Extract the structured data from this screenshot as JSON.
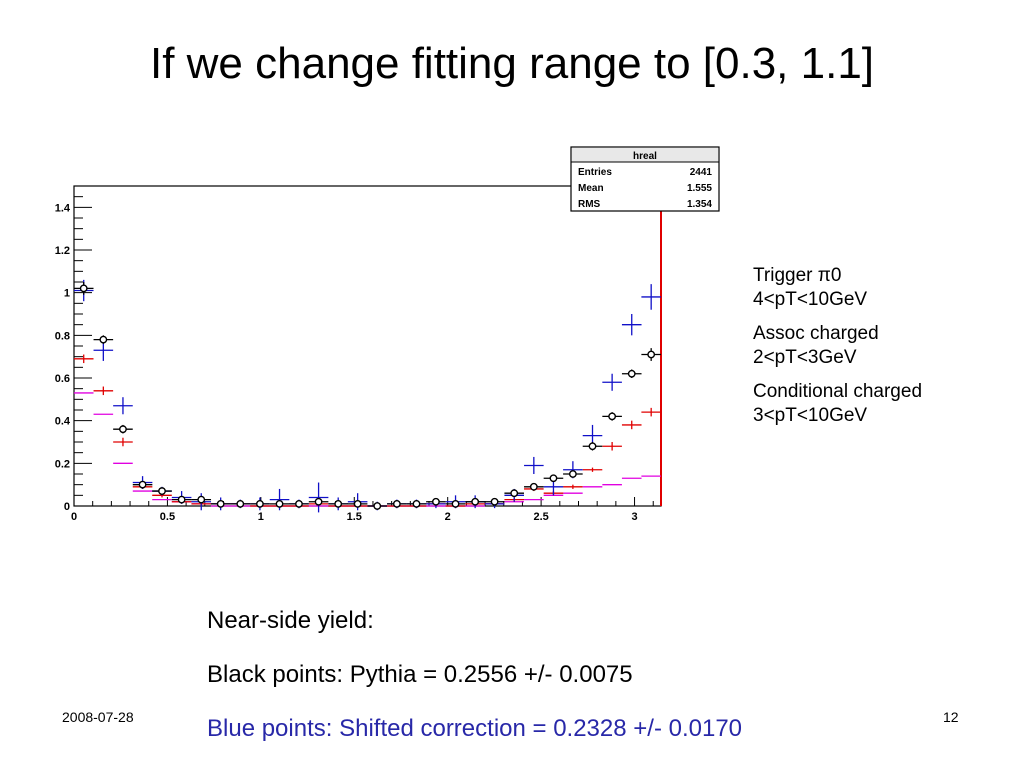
{
  "slide": {
    "title": "If we change fitting range to [0.3, 1.1]",
    "date": "2008-07-28",
    "page_number": "12"
  },
  "side_note": {
    "trigger_label": "Trigger π0",
    "trigger_range": "4<pT<10GeV",
    "assoc_label": "Assoc charged",
    "assoc_range": "2<pT<3GeV",
    "conditional_label": "Conditional charged",
    "conditional_range": "3<pT<10GeV"
  },
  "yield": {
    "heading": "Near-side yield:",
    "black_line": "Black points: Pythia = 0.2556 +/- 0.0075",
    "blue_line": "Blue points:  Shifted correction = 0.2328 +/- 0.0170"
  },
  "stats_box": {
    "title": "hreal",
    "rows": [
      {
        "label": "Entries",
        "value": "2441"
      },
      {
        "label": "Mean",
        "value": "1.555"
      },
      {
        "label": "RMS",
        "value": "1.354"
      }
    ]
  },
  "colors": {
    "blue": "#1010c8",
    "black": "#000000",
    "red": "#e00000",
    "magenta": "#e000e0"
  },
  "chart_data": {
    "type": "scatter",
    "title": "",
    "xlabel": "",
    "ylabel": "",
    "xlim": [
      0,
      3.1416
    ],
    "ylim": [
      0,
      1.5
    ],
    "x_ticks": [
      0,
      0.5,
      1,
      1.5,
      2,
      2.5,
      3
    ],
    "x_tick_labels": [
      "0",
      "0.5",
      "1",
      "1.5",
      "2",
      "2.5",
      "3"
    ],
    "y_ticks": [
      0,
      0.2,
      0.4,
      0.6,
      0.8,
      1,
      1.2,
      1.4
    ],
    "y_tick_labels": [
      "0",
      "0.2",
      "0.4",
      "0.6",
      "0.8",
      "1",
      "1.2",
      "1.4"
    ],
    "grid": false,
    "bin_half_width": 0.0524,
    "series": [
      {
        "color": "#1010c8",
        "marker": "cross",
        "x": [
          0.052,
          0.157,
          0.262,
          0.367,
          0.471,
          0.576,
          0.681,
          0.785,
          0.89,
          0.995,
          1.1,
          1.204,
          1.309,
          1.414,
          1.518,
          1.623,
          1.728,
          1.833,
          1.937,
          2.042,
          2.147,
          2.251,
          2.356,
          2.461,
          2.566,
          2.67,
          2.775,
          2.88,
          2.985,
          3.089
        ],
        "y": [
          1.01,
          0.73,
          0.47,
          0.11,
          0.07,
          0.04,
          0.02,
          0.01,
          0.01,
          0.01,
          0.03,
          0.01,
          0.04,
          0.01,
          0.02,
          0.0,
          0.01,
          0.01,
          0.01,
          0.02,
          0.02,
          0.01,
          0.05,
          0.19,
          0.09,
          0.17,
          0.33,
          0.58,
          0.85,
          0.98
        ],
        "err": [
          0.05,
          0.05,
          0.04,
          0.03,
          0.02,
          0.03,
          0.04,
          0.03,
          0.02,
          0.03,
          0.05,
          0.02,
          0.07,
          0.03,
          0.04,
          0.02,
          0.02,
          0.02,
          0.02,
          0.03,
          0.03,
          0.02,
          0.03,
          0.04,
          0.04,
          0.04,
          0.05,
          0.04,
          0.05,
          0.06
        ]
      },
      {
        "color": "#000000",
        "marker": "open-circle",
        "x": [
          0.052,
          0.157,
          0.262,
          0.367,
          0.471,
          0.576,
          0.681,
          0.785,
          0.89,
          0.995,
          1.1,
          1.204,
          1.309,
          1.414,
          1.518,
          1.623,
          1.728,
          1.833,
          1.937,
          2.042,
          2.147,
          2.251,
          2.356,
          2.461,
          2.566,
          2.67,
          2.775,
          2.88,
          2.985,
          3.089
        ],
        "y": [
          1.02,
          0.78,
          0.36,
          0.1,
          0.07,
          0.03,
          0.03,
          0.01,
          0.01,
          0.01,
          0.01,
          0.01,
          0.02,
          0.01,
          0.01,
          0.0,
          0.01,
          0.01,
          0.02,
          0.01,
          0.02,
          0.02,
          0.06,
          0.09,
          0.13,
          0.15,
          0.28,
          0.42,
          0.62,
          0.71
        ],
        "err": [
          0.03,
          0.02,
          0.02,
          0.01,
          0.01,
          0.01,
          0.01,
          0.01,
          0.01,
          0.01,
          0.01,
          0.01,
          0.01,
          0.01,
          0.01,
          0.01,
          0.01,
          0.01,
          0.01,
          0.01,
          0.01,
          0.01,
          0.01,
          0.01,
          0.01,
          0.01,
          0.02,
          0.02,
          0.02,
          0.03
        ]
      },
      {
        "color": "#e00000",
        "marker": "cross",
        "x": [
          0.052,
          0.157,
          0.262,
          0.367,
          0.471,
          0.576,
          0.681,
          0.785,
          0.89,
          0.995,
          1.1,
          1.204,
          1.309,
          1.414,
          1.518,
          1.623,
          1.728,
          1.833,
          1.937,
          2.042,
          2.147,
          2.251,
          2.356,
          2.461,
          2.566,
          2.67,
          2.775,
          2.88,
          2.985,
          3.089
        ],
        "y": [
          0.69,
          0.54,
          0.3,
          0.09,
          0.05,
          0.02,
          0.01,
          0.01,
          0.01,
          0.0,
          0.0,
          0.0,
          0.01,
          0.0,
          0.0,
          0.0,
          0.0,
          0.0,
          0.01,
          0.0,
          0.01,
          0.01,
          0.03,
          0.08,
          0.06,
          0.09,
          0.17,
          0.28,
          0.38,
          0.44
        ],
        "err": [
          0.02,
          0.02,
          0.02,
          0.01,
          0.01,
          0.01,
          0.01,
          0.01,
          0.01,
          0.01,
          0.01,
          0.01,
          0.01,
          0.01,
          0.01,
          0.01,
          0.01,
          0.01,
          0.01,
          0.01,
          0.01,
          0.01,
          0.01,
          0.01,
          0.01,
          0.01,
          0.01,
          0.02,
          0.02,
          0.02
        ]
      },
      {
        "color": "#e000e0",
        "marker": "dash",
        "x": [
          0.052,
          0.157,
          0.262,
          0.367,
          0.471,
          0.576,
          0.681,
          0.785,
          0.89,
          0.995,
          1.1,
          1.204,
          1.309,
          1.414,
          1.518,
          1.623,
          1.728,
          1.833,
          1.937,
          2.042,
          2.147,
          2.251,
          2.356,
          2.461,
          2.566,
          2.67,
          2.775,
          2.88,
          2.985,
          3.089
        ],
        "y": [
          0.53,
          0.43,
          0.2,
          0.07,
          0.03,
          0.02,
          0.01,
          0.0,
          0.0,
          0.0,
          0.0,
          0.0,
          0.0,
          0.0,
          0.0,
          0.0,
          0.0,
          0.0,
          0.0,
          0.0,
          0.0,
          0.01,
          0.02,
          0.03,
          0.05,
          0.06,
          0.09,
          0.1,
          0.13,
          0.14
        ],
        "err": [
          0.0,
          0.0,
          0.0,
          0.0,
          0.0,
          0.0,
          0.0,
          0.0,
          0.0,
          0.0,
          0.0,
          0.0,
          0.0,
          0.0,
          0.0,
          0.0,
          0.0,
          0.0,
          0.0,
          0.0,
          0.0,
          0.0,
          0.0,
          0.0,
          0.0,
          0.0,
          0.0,
          0.0,
          0.0,
          0.0
        ]
      }
    ]
  }
}
